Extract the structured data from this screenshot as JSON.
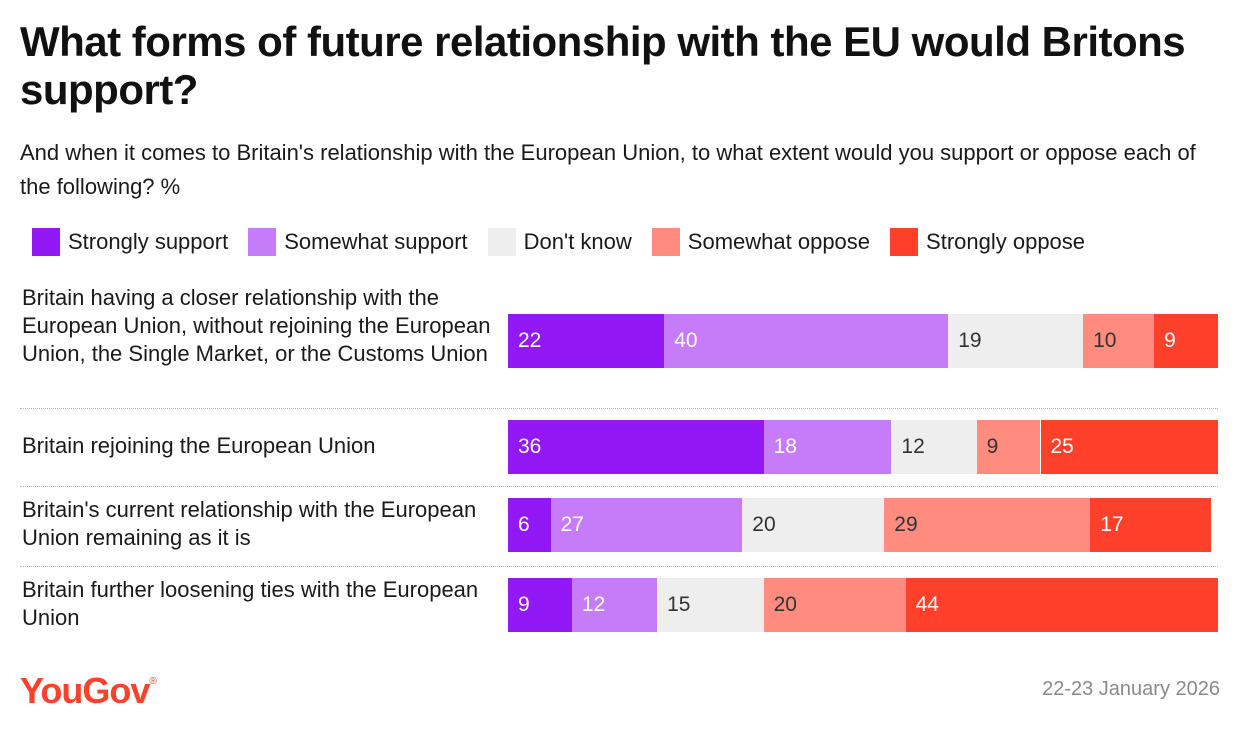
{
  "title": "What forms of future relationship with the EU would Britons support?",
  "subtitle": "And when it comes to Britain's relationship with the European Union, to what extent would you support or oppose each of the following? %",
  "colors": {
    "strongly_support": "#9219f5",
    "somewhat_support": "#c67cf9",
    "dont_know": "#eeeeee",
    "somewhat_oppose": "#ff8c7e",
    "strongly_oppose": "#ff412c",
    "label_light": "#ffffff",
    "label_dark": "#333333"
  },
  "footer": {
    "brand": "YouGov",
    "date": "22-23 January 2026"
  },
  "chart_data": {
    "type": "bar",
    "orientation": "horizontal-stacked",
    "categories": [
      "Britain having a closer relationship with the European Union, without rejoining the European Union, the Single Market, or the Customs Union",
      "Britain rejoining the European Union",
      "Britain's current relationship with the European Union remaining as it is",
      "Britain further loosening ties with the European Union"
    ],
    "series": [
      {
        "name": "Strongly support",
        "key": "strongly_support",
        "values": [
          22,
          36,
          6,
          9
        ]
      },
      {
        "name": "Somewhat support",
        "key": "somewhat_support",
        "values": [
          40,
          18,
          27,
          12
        ]
      },
      {
        "name": "Don't know",
        "key": "dont_know",
        "values": [
          19,
          12,
          20,
          15
        ]
      },
      {
        "name": "Somewhat oppose",
        "key": "somewhat_oppose",
        "values": [
          10,
          9,
          29,
          20
        ]
      },
      {
        "name": "Strongly oppose",
        "key": "strongly_oppose",
        "values": [
          9,
          25,
          17,
          44
        ]
      }
    ],
    "title": "What forms of future relationship with the EU would Britons support?",
    "xlabel": "",
    "ylabel": "",
    "xlim": [
      0,
      100
    ],
    "legend": "top"
  }
}
